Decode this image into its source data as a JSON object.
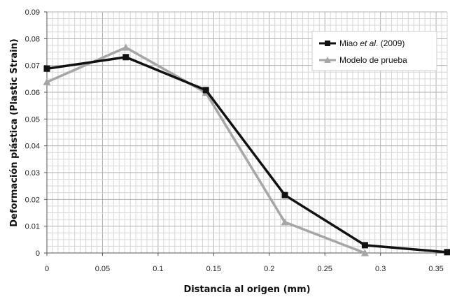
{
  "chart_data": {
    "type": "line",
    "xlabel": "Distancia  al origen (mm)",
    "ylabel": "Deformación plástica (Plastic Strain)",
    "xlim": [
      0,
      0.36
    ],
    "ylim": [
      0,
      0.09
    ],
    "x_ticks": [
      "0",
      "0.05",
      "0.1",
      "0.15",
      "0.2",
      "0.25",
      "0.3",
      "0.35"
    ],
    "y_ticks": [
      "0",
      "0.01",
      "0.02",
      "0.03",
      "0.04",
      "0.05",
      "0.06",
      "0.07",
      "0.08",
      "0.09"
    ],
    "grid": true,
    "legend_position": "top-right",
    "series": [
      {
        "name_parts": [
          "Miao ",
          "et al",
          ". (2009)"
        ],
        "color": "#111111",
        "marker": "square",
        "x": [
          0,
          0.071,
          0.143,
          0.214,
          0.286,
          0.36
        ],
        "y": [
          0.0688,
          0.0731,
          0.0608,
          0.0216,
          0.0029,
          0.0003
        ]
      },
      {
        "name": "Modelo de prueba",
        "color": "#a6a6a6",
        "marker": "triangle",
        "x": [
          0,
          0.071,
          0.143,
          0.214,
          0.286
        ],
        "y": [
          0.0638,
          0.0767,
          0.0598,
          0.0115,
          0.0
        ]
      }
    ]
  }
}
